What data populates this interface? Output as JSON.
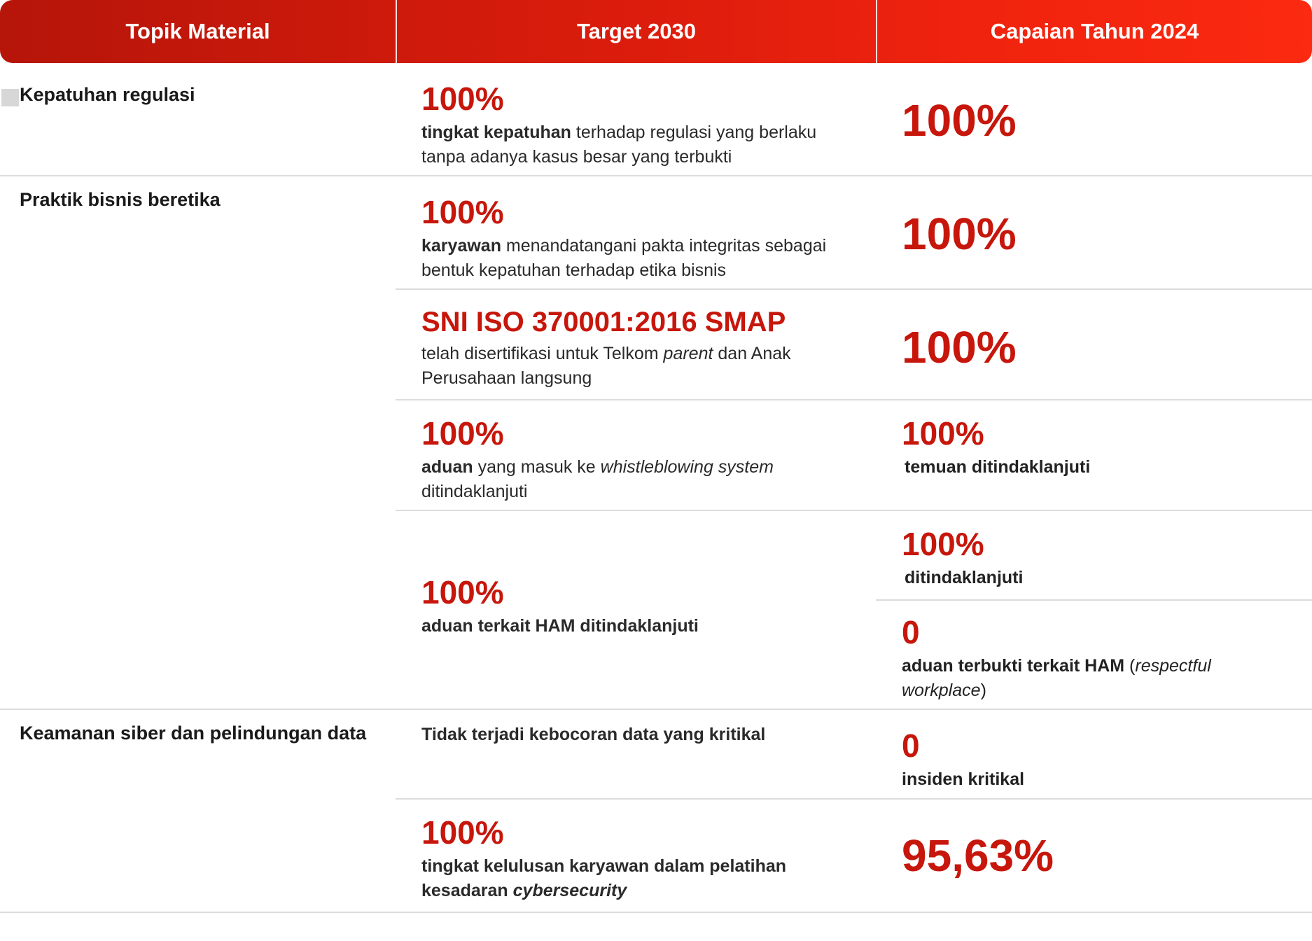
{
  "header": {
    "col1": "Topik Material",
    "col2": "Target 2030",
    "col3": "Capaian Tahun 2024"
  },
  "rows": {
    "r1": {
      "topic": "Kepatuhan regulasi",
      "target_value": "100%",
      "target_bold": "tingkat kepatuhan",
      "target_rest": " terhadap regulasi yang berlaku tanpa adanya kasus besar yang terbukti",
      "achievement": "100%"
    },
    "r2": {
      "topic": "Praktik bisnis beretika",
      "target_value": "100%",
      "target_bold": "karyawan",
      "target_rest": " menandatangani pakta integritas sebagai bentuk kepatuhan terhadap etika bisnis",
      "achievement": "100%"
    },
    "r3": {
      "target_value": "SNI ISO 370001:2016 SMAP",
      "target_pre": "telah disertifikasi untuk Telkom ",
      "target_italic": "parent",
      "target_post": " dan Anak Perusahaan langsung",
      "achievement": "100%"
    },
    "r4": {
      "target_value": "100%",
      "target_bold": "aduan",
      "target_mid": " yang masuk ke ",
      "target_italic": "whistleblowing system",
      "target_post": " ditindaklanjuti",
      "achievement": "100%",
      "achievement_desc": "temuan ditindaklanjuti"
    },
    "r5": {
      "target_value": "100%",
      "target_desc": "aduan terkait HAM ditindaklanjuti",
      "achievement_a": "100%",
      "achievement_a_desc": "ditindaklanjuti",
      "achievement_b": "0",
      "achievement_b_bold": "aduan terbukti terkait HAM",
      "achievement_b_open": " (",
      "achievement_b_italic": "respectful workplace",
      "achievement_b_close": ")"
    },
    "r6": {
      "topic": "Keamanan siber dan pelindungan data",
      "target_desc": "Tidak terjadi kebocoran data yang kritikal",
      "achievement": "0",
      "achievement_desc": "insiden kritikal"
    },
    "r7": {
      "target_value": "100%",
      "target_bold": "tingkat kelulusan karyawan dalam pelatihan kesadaran ",
      "target_italic": "cybersecurity",
      "achievement": "95,63%"
    }
  },
  "colors": {
    "header_start": "#b6150a",
    "header_end": "#fb2a10",
    "accent_red": "#c7160b",
    "divider": "#dcdcdc"
  }
}
